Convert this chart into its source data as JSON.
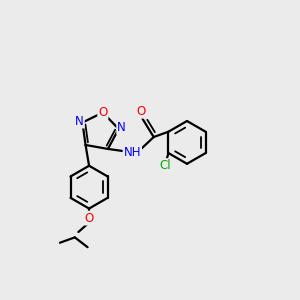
{
  "bg_color": "#ebebeb",
  "bond_color": "#000000",
  "atom_colors": {
    "O": "#ff0000",
    "N": "#0000ff",
    "Cl": "#00aa00",
    "C": "#000000",
    "H": "#000000"
  },
  "bond_lw": 1.6,
  "inner_lw": 1.3,
  "fontsize": 8.5
}
